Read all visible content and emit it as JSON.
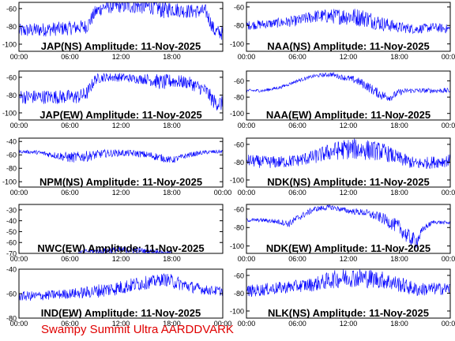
{
  "footer": "Swampy Summit Ultra AARDDVARK",
  "colors": {
    "trace": "#0000ff",
    "axis": "#000000",
    "footer": "#e00000"
  },
  "chart_data": [
    {
      "type": "line",
      "title": "JAP(NS) Amplitude: 11-Nov-2025",
      "ylim": [
        -108,
        -53
      ],
      "yticks": [
        -60,
        -80,
        -100
      ],
      "xticks": [
        "00:00",
        "06:00",
        "12:00",
        "18:00"
      ],
      "series": [
        {
          "x": [
            0,
            2,
            4,
            6,
            8,
            9,
            10,
            12,
            14,
            16,
            17,
            18,
            19,
            20,
            22,
            23,
            24
          ],
          "y": [
            -85,
            -84,
            -83,
            -82,
            -80,
            -64,
            -58,
            -57,
            -57,
            -58,
            -62,
            -60,
            -62,
            -63,
            -63,
            -85,
            -88
          ],
          "band": [
            8,
            8,
            8,
            8,
            8,
            8,
            8,
            8,
            9,
            9,
            10,
            9,
            8,
            8,
            8,
            8,
            8
          ]
        }
      ]
    },
    {
      "type": "line",
      "title": "NAA(NS) Amplitude: 11-Nov-2025",
      "ylim": [
        -108,
        -55
      ],
      "yticks": [
        -60,
        -80,
        -100
      ],
      "xticks": [
        "00:00",
        "06:00",
        "12:00",
        "18:00",
        "00:00"
      ],
      "series": [
        {
          "x": [
            0,
            3,
            6,
            8,
            10,
            12,
            14,
            16,
            18,
            20,
            22,
            24
          ],
          "y": [
            -80,
            -78,
            -75,
            -70,
            -70,
            -70,
            -72,
            -78,
            -82,
            -84,
            -82,
            -84
          ],
          "band": [
            5,
            5,
            6,
            7,
            8,
            10,
            10,
            8,
            6,
            5,
            5,
            5
          ]
        }
      ]
    },
    {
      "type": "line",
      "title": "JAP(EW) Amplitude: 11-Nov-2025",
      "ylim": [
        -108,
        -53
      ],
      "yticks": [
        -60,
        -80,
        -100
      ],
      "xticks": [
        "00:00",
        "06:00",
        "12:00",
        "18:00"
      ],
      "series": [
        {
          "x": [
            0,
            2,
            4,
            6,
            7,
            8,
            9,
            10,
            12,
            14,
            15,
            16,
            17,
            18,
            20,
            22,
            23,
            24
          ],
          "y": [
            -82,
            -82,
            -82,
            -82,
            -82,
            -78,
            -62,
            -60,
            -60,
            -62,
            -62,
            -64,
            -66,
            -64,
            -66,
            -75,
            -88,
            -90
          ],
          "band": [
            8,
            8,
            8,
            8,
            8,
            8,
            6,
            5,
            5,
            5,
            6,
            8,
            9,
            8,
            7,
            8,
            9,
            9
          ]
        }
      ]
    },
    {
      "type": "line",
      "title": "NAA(EW) Amplitude: 11-Nov-2025",
      "ylim": [
        -108,
        -48
      ],
      "yticks": [
        -60,
        -80,
        -100
      ],
      "xticks": [
        "00:00",
        "06:00",
        "12:00",
        "18:00",
        "00:00"
      ],
      "series": [
        {
          "x": [
            0,
            2,
            3,
            4,
            5,
            6,
            8,
            10,
            11,
            12,
            13,
            14,
            15,
            16,
            17,
            18,
            19,
            20,
            22,
            24
          ],
          "y": [
            -72,
            -72,
            -70,
            -68,
            -64,
            -60,
            -54,
            -52,
            -55,
            -57,
            -60,
            -65,
            -72,
            -78,
            -80,
            -74,
            -72,
            -72,
            -72,
            -72
          ],
          "band": [
            2,
            2,
            2,
            2,
            2,
            2,
            2,
            3,
            3,
            4,
            5,
            6,
            6,
            6,
            5,
            4,
            3,
            3,
            3,
            3
          ]
        }
      ]
    },
    {
      "type": "line",
      "title": "NPM(NS) Amplitude: 11-Nov-2025",
      "ylim": [
        -108,
        -35
      ],
      "yticks": [
        -40,
        -60,
        -80,
        -100
      ],
      "xticks": [
        "00:00",
        "06:00",
        "12:00",
        "18:00",
        "00:00"
      ],
      "series": [
        {
          "x": [
            0,
            2,
            4,
            6,
            8,
            10,
            12,
            14,
            16,
            18,
            20,
            22,
            24
          ],
          "y": [
            -55,
            -56,
            -60,
            -64,
            -62,
            -58,
            -57,
            -58,
            -62,
            -68,
            -60,
            -56,
            -55
          ],
          "band": [
            2,
            3,
            5,
            8,
            8,
            6,
            5,
            5,
            6,
            5,
            4,
            3,
            3
          ]
        }
      ]
    },
    {
      "type": "line",
      "title": "NDK(NS) Amplitude: 11-Nov-2025",
      "ylim": [
        -108,
        -53
      ],
      "yticks": [
        -60,
        -80,
        -100
      ],
      "xticks": [
        "00:00",
        "06:00",
        "12:00",
        "18:00",
        "00:00"
      ],
      "series": [
        {
          "x": [
            0,
            2,
            4,
            6,
            8,
            10,
            12,
            14,
            16,
            18,
            20,
            22,
            24
          ],
          "y": [
            -78,
            -80,
            -80,
            -78,
            -74,
            -68,
            -65,
            -66,
            -68,
            -76,
            -82,
            -80,
            -78
          ],
          "band": [
            7,
            7,
            7,
            7,
            8,
            10,
            12,
            12,
            10,
            8,
            7,
            7,
            7
          ]
        }
      ]
    },
    {
      "type": "line",
      "title": "NWC(EW) Amplitude: 11-Nov-2025",
      "ylim": [
        -70,
        -25
      ],
      "yticks": [
        -30,
        -40,
        -50,
        -60,
        -70
      ],
      "xticks": [
        "00:00",
        "06:00",
        "12:00",
        "18:00"
      ],
      "series": [
        {
          "x": [
            7,
            8,
            9,
            10,
            11,
            12,
            13,
            14,
            15,
            16,
            17,
            18
          ],
          "y": [
            -69,
            -68,
            -68,
            -68,
            -67,
            -67,
            -67,
            -67,
            -68,
            -68,
            -69,
            -69
          ],
          "band": [
            1,
            2,
            2,
            3,
            3,
            3,
            3,
            3,
            2,
            2,
            1,
            1
          ]
        }
      ]
    },
    {
      "type": "line",
      "title": "NDK(EW) Amplitude: 11-Nov-2025",
      "ylim": [
        -108,
        -55
      ],
      "yticks": [
        -60,
        -80,
        -100
      ],
      "xticks": [
        "00:00",
        "06:00",
        "12:00",
        "18:00",
        "00:00"
      ],
      "series": [
        {
          "x": [
            0,
            2,
            4,
            5,
            6,
            8,
            10,
            12,
            14,
            16,
            18,
            19,
            20,
            21,
            22,
            24
          ],
          "y": [
            -72,
            -72,
            -74,
            -76,
            -70,
            -60,
            -58,
            -62,
            -64,
            -70,
            -80,
            -90,
            -95,
            -80,
            -74,
            -75
          ],
          "band": [
            2,
            2,
            3,
            4,
            4,
            3,
            3,
            3,
            4,
            6,
            8,
            9,
            8,
            4,
            2,
            2
          ]
        }
      ]
    },
    {
      "type": "line",
      "title": "IND(EW) Amplitude: 11-Nov-2025",
      "ylim": [
        -80,
        -40
      ],
      "yticks": [
        -40,
        -60,
        -80
      ],
      "xticks": [
        "00:00",
        "06:00",
        "12:00",
        "18:00",
        "00:00"
      ],
      "series": [
        {
          "x": [
            0,
            2,
            4,
            6,
            8,
            10,
            12,
            14,
            16,
            17,
            18,
            20,
            22,
            24
          ],
          "y": [
            -62,
            -62,
            -61,
            -60,
            -59,
            -57,
            -55,
            -52,
            -50,
            -48,
            -50,
            -54,
            -57,
            -58
          ],
          "band": [
            4,
            4,
            4,
            4,
            5,
            6,
            6,
            6,
            5,
            5,
            6,
            5,
            4,
            4
          ]
        }
      ]
    },
    {
      "type": "line",
      "title": "NLK(NS) Amplitude: 11-Nov-2025",
      "ylim": [
        -108,
        -53
      ],
      "yticks": [
        -60,
        -80,
        -100
      ],
      "xticks": [
        "00:00",
        "06:00",
        "12:00",
        "18:00",
        "00:00"
      ],
      "series": [
        {
          "x": [
            0,
            2,
            4,
            6,
            8,
            10,
            12,
            14,
            16,
            18,
            20,
            22,
            24
          ],
          "y": [
            -78,
            -76,
            -74,
            -72,
            -70,
            -65,
            -62,
            -63,
            -65,
            -70,
            -76,
            -75,
            -75
          ],
          "band": [
            7,
            7,
            7,
            7,
            8,
            10,
            11,
            11,
            10,
            9,
            8,
            7,
            7
          ]
        }
      ]
    }
  ]
}
